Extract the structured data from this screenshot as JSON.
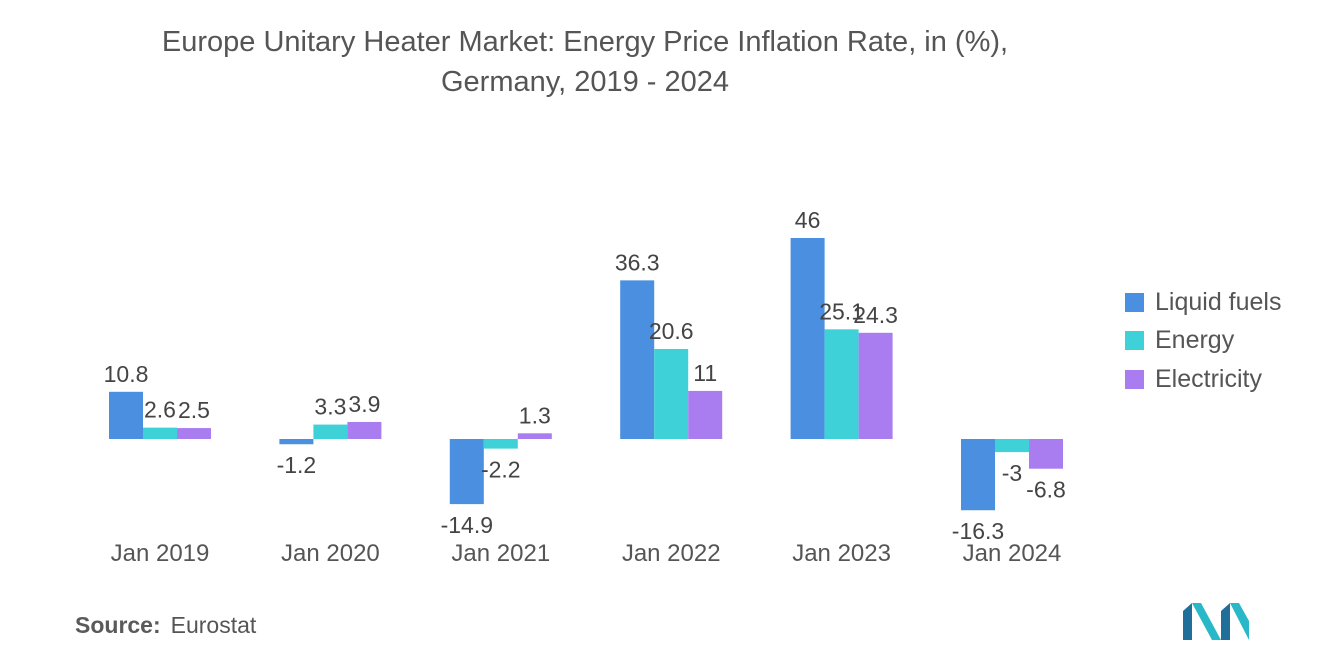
{
  "chart_data": {
    "type": "bar",
    "title": "Europe Unitary Heater Market: Energy Price Inflation Rate, in (%),",
    "subtitle": "Germany, 2019 - 2024",
    "categories": [
      "Jan 2019",
      "Jan 2020",
      "Jan 2021",
      "Jan 2022",
      "Jan 2023",
      "Jan 2024"
    ],
    "series": [
      {
        "name": "Liquid fuels",
        "color": "#4a8fe0",
        "values": [
          10.8,
          -1.2,
          -14.9,
          36.3,
          46,
          -16.3
        ],
        "labels": [
          "10.8",
          "-1.2",
          "-14.9",
          "36.3",
          "46",
          "-16.3"
        ]
      },
      {
        "name": "Energy",
        "color": "#3ed2d8",
        "values": [
          2.6,
          3.3,
          -2.2,
          20.6,
          25.1,
          -3
        ],
        "labels": [
          "2.6",
          "3.3",
          "-2.2",
          "20.6",
          "25.1",
          "-3"
        ]
      },
      {
        "name": "Electricity",
        "color": "#a97df0",
        "values": [
          2.5,
          3.9,
          1.3,
          11,
          24.3,
          -6.8
        ],
        "labels": [
          "2.5",
          "3.9",
          "1.3",
          "11",
          "24.3",
          "-6.8"
        ]
      }
    ],
    "xlabel": "",
    "ylabel": "",
    "ylim": [
      -20,
      50
    ],
    "grid": false,
    "legend": "right"
  },
  "source": {
    "label": "Source:",
    "value": "Eurostat"
  },
  "logo": {
    "name": "mordor-intelligence-logo-icon"
  }
}
